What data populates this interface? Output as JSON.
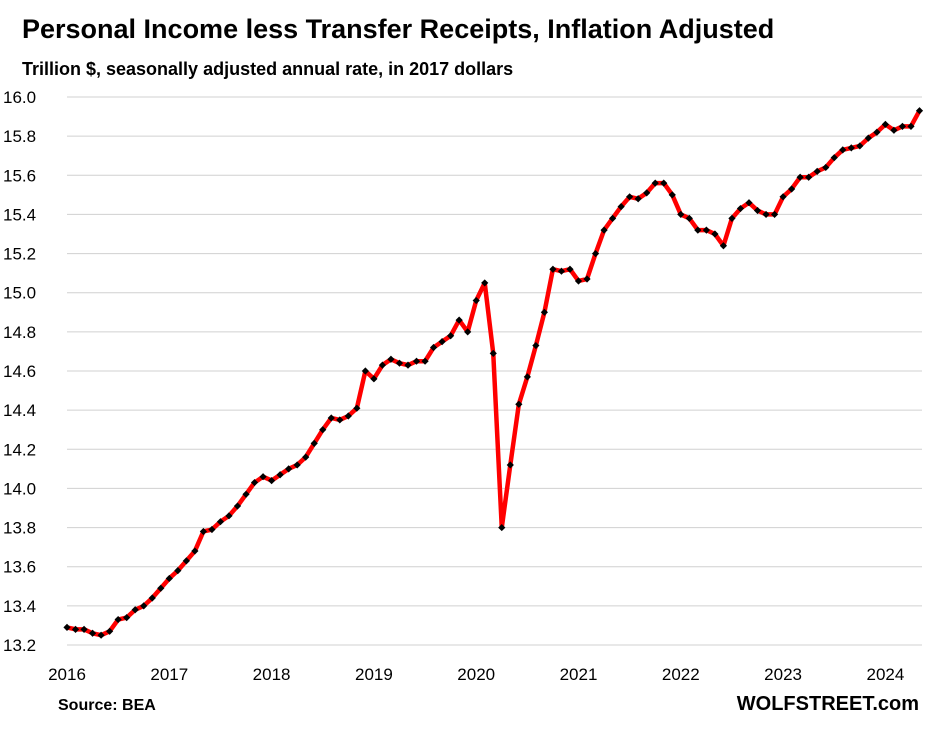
{
  "chart_data": {
    "type": "line",
    "title": "Personal Income less Transfer Receipts, Inflation Adjusted",
    "subtitle": "Trillion $, seasonally adjusted annual rate, in 2017 dollars",
    "xlabel": "",
    "ylabel": "",
    "ylim": [
      13.2,
      16.0
    ],
    "y_ticks": [
      "13.2",
      "13.4",
      "13.6",
      "13.8",
      "14.0",
      "14.2",
      "14.4",
      "14.6",
      "14.8",
      "15.0",
      "15.2",
      "15.4",
      "15.6",
      "15.8",
      "16.0"
    ],
    "x_ticks": [
      "2016",
      "2017",
      "2018",
      "2019",
      "2020",
      "2021",
      "2022",
      "2023",
      "2024"
    ],
    "x_start": "2016-01",
    "grid": true,
    "series": [
      {
        "color": "#ff0000",
        "marker_color": "#000000",
        "values": [
          13.29,
          13.28,
          13.28,
          13.26,
          13.25,
          13.27,
          13.33,
          13.34,
          13.38,
          13.4,
          13.44,
          13.49,
          13.54,
          13.58,
          13.63,
          13.68,
          13.78,
          13.79,
          13.83,
          13.86,
          13.91,
          13.97,
          14.03,
          14.06,
          14.04,
          14.07,
          14.1,
          14.12,
          14.16,
          14.23,
          14.3,
          14.36,
          14.35,
          14.37,
          14.41,
          14.6,
          14.56,
          14.63,
          14.66,
          14.64,
          14.63,
          14.65,
          14.65,
          14.72,
          14.75,
          14.78,
          14.86,
          14.8,
          14.96,
          15.05,
          14.69,
          13.8,
          14.12,
          14.43,
          14.57,
          14.73,
          14.9,
          15.12,
          15.11,
          15.12,
          15.06,
          15.07,
          15.2,
          15.32,
          15.38,
          15.44,
          15.49,
          15.48,
          15.51,
          15.56,
          15.56,
          15.5,
          15.4,
          15.38,
          15.32,
          15.32,
          15.3,
          15.24,
          15.38,
          15.43,
          15.46,
          15.42,
          15.4,
          15.4,
          15.49,
          15.53,
          15.59,
          15.59,
          15.62,
          15.64,
          15.69,
          15.73,
          15.74,
          15.75,
          15.79,
          15.82,
          15.86,
          15.83,
          15.85,
          15.85,
          15.93
        ]
      }
    ]
  },
  "footer": {
    "source": "Source: BEA",
    "brand": "WOLFSTREET.com"
  }
}
